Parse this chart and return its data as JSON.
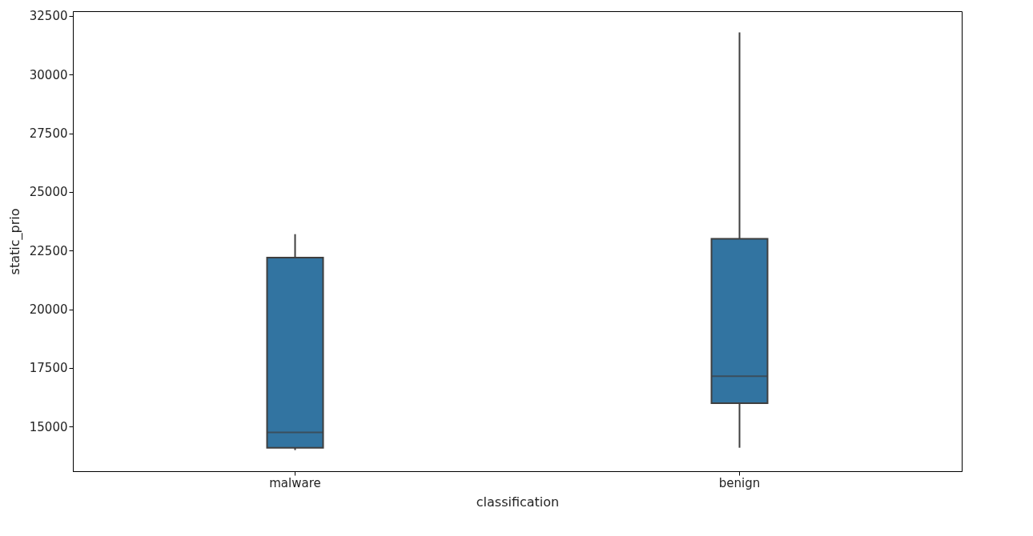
{
  "chart_data": {
    "type": "box",
    "xlabel": "classification",
    "ylabel": "static_prio",
    "categories": [
      "malware",
      "benign"
    ],
    "series": [
      {
        "color": "#3274a1",
        "boxes": [
          {
            "low": 14000,
            "q1": 14100,
            "median": 14750,
            "q3": 22200,
            "high": 23200
          },
          {
            "low": 14100,
            "q1": 16000,
            "median": 17150,
            "q3": 23000,
            "high": 31800
          }
        ]
      }
    ],
    "ylim": [
      13100,
      32700
    ],
    "yticks": [
      15000,
      17500,
      20000,
      22500,
      25000,
      27500,
      30000,
      32500
    ],
    "grid": false
  }
}
